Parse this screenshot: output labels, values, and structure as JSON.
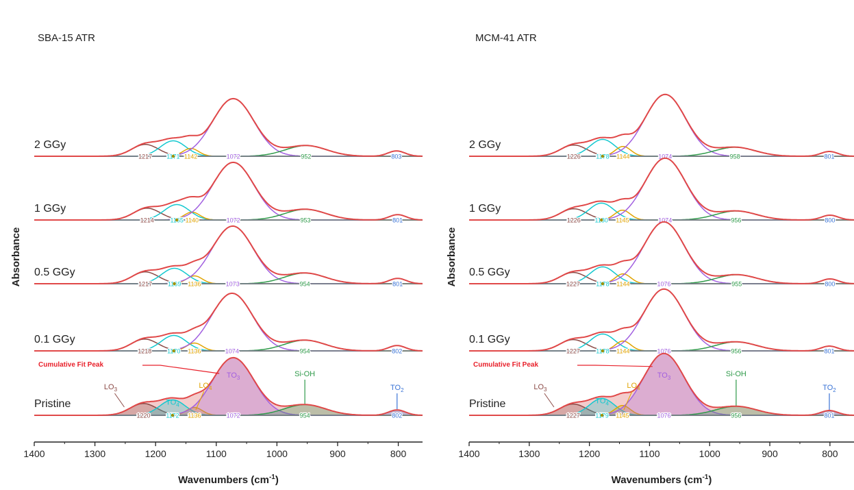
{
  "colors": {
    "envelope": "#e04848",
    "envelope_fill": "#e9a3a3",
    "baseline": "#7f7f7f",
    "LO3": "#8b4a46",
    "TO4": "#12c8cf",
    "LO4": "#e0a300",
    "TO3": "#a15fe0",
    "SiOH": "#2f9a4a",
    "TO2": "#3a73d6",
    "marker": "#a09000"
  },
  "y_axis_label": "Absorbance",
  "band_names": {
    "LO3": "LO",
    "LO3_sub": "3",
    "TO4": "TO",
    "TO4_sub": "4",
    "LO4": "LO",
    "LO4_sub": "4",
    "TO3": "TO",
    "TO3_sub": "3",
    "SiOH": "Si-OH",
    "TO2": "TO",
    "TO2_sub": "2"
  },
  "chart_data": [
    {
      "type": "line",
      "title": "SBA-15 ATR",
      "xlabel_main": "Wavenumbers (cm",
      "xlabel_sup": "-1",
      "xlabel_end": ")",
      "xlim": [
        1400,
        760
      ],
      "xticks": [
        1400,
        1300,
        1200,
        1100,
        1000,
        900,
        800
      ],
      "cumulative_label": "Cumulative Fit Peak",
      "samples": [
        {
          "name": "2 GGy",
          "peaks": {
            "LO3": 1217,
            "TO4": 1171,
            "LO4": 1142,
            "TO3": 1072,
            "SiOH": 952,
            "TO2": 803
          },
          "heights": {
            "LO3": 0.42,
            "TO4": 0.55,
            "LO4": 0.28,
            "TO3": 2.05,
            "SiOH": 0.38,
            "TO2": 0.19
          }
        },
        {
          "name": "1 GGy",
          "peaks": {
            "LO3": 1214,
            "TO4": 1165,
            "LO4": 1140,
            "TO3": 1072,
            "SiOH": 953,
            "TO2": 801
          },
          "heights": {
            "LO3": 0.42,
            "TO4": 0.55,
            "LO4": 0.28,
            "TO3": 2.05,
            "SiOH": 0.38,
            "TO2": 0.19
          }
        },
        {
          "name": "0.5 GGy",
          "peaks": {
            "LO3": 1217,
            "TO4": 1169,
            "LO4": 1136,
            "TO3": 1073,
            "SiOH": 954,
            "TO2": 801
          },
          "heights": {
            "LO3": 0.42,
            "TO4": 0.55,
            "LO4": 0.28,
            "TO3": 2.05,
            "SiOH": 0.38,
            "TO2": 0.19
          }
        },
        {
          "name": "0.1 GGy",
          "peaks": {
            "LO3": 1218,
            "TO4": 1170,
            "LO4": 1136,
            "TO3": 1074,
            "SiOH": 954,
            "TO2": 802
          },
          "heights": {
            "LO3": 0.42,
            "TO4": 0.55,
            "LO4": 0.28,
            "TO3": 2.05,
            "SiOH": 0.38,
            "TO2": 0.19
          }
        },
        {
          "name": "Pristine",
          "peaks": {
            "LO3": 1220,
            "TO4": 1172,
            "LO4": 1136,
            "TO3": 1072,
            "SiOH": 954,
            "TO2": 802
          },
          "heights": {
            "LO3": 0.42,
            "TO4": 0.55,
            "LO4": 0.28,
            "TO3": 2.05,
            "SiOH": 0.38,
            "TO2": 0.19
          }
        }
      ]
    },
    {
      "type": "line",
      "title": "MCM-41 ATR",
      "xlabel_main": "Wavenumbers (cm",
      "xlabel_sup": "-1",
      "xlabel_end": ")",
      "xlim": [
        1400,
        760
      ],
      "xticks": [
        1400,
        1300,
        1200,
        1100,
        1000,
        900,
        800
      ],
      "cumulative_label": "Cumulative Fit Peak",
      "samples": [
        {
          "name": "2 GGy",
          "peaks": {
            "LO3": 1226,
            "TO4": 1178,
            "LO4": 1144,
            "TO3": 1074,
            "SiOH": 958,
            "TO2": 801
          },
          "heights": {
            "LO3": 0.4,
            "TO4": 0.6,
            "LO4": 0.35,
            "TO3": 2.2,
            "SiOH": 0.32,
            "TO2": 0.17
          }
        },
        {
          "name": "1 GGy",
          "peaks": {
            "LO3": 1226,
            "TO4": 1180,
            "LO4": 1145,
            "TO3": 1074,
            "SiOH": 956,
            "TO2": 800
          },
          "heights": {
            "LO3": 0.4,
            "TO4": 0.6,
            "LO4": 0.35,
            "TO3": 2.2,
            "SiOH": 0.32,
            "TO2": 0.17
          }
        },
        {
          "name": "0.5 GGy",
          "peaks": {
            "LO3": 1227,
            "TO4": 1178,
            "LO4": 1144,
            "TO3": 1076,
            "SiOH": 955,
            "TO2": 800
          },
          "heights": {
            "LO3": 0.4,
            "TO4": 0.6,
            "LO4": 0.35,
            "TO3": 2.2,
            "SiOH": 0.32,
            "TO2": 0.17
          }
        },
        {
          "name": "0.1 GGy",
          "peaks": {
            "LO3": 1227,
            "TO4": 1178,
            "LO4": 1144,
            "TO3": 1076,
            "SiOH": 956,
            "TO2": 801
          },
          "heights": {
            "LO3": 0.4,
            "TO4": 0.6,
            "LO4": 0.35,
            "TO3": 2.2,
            "SiOH": 0.32,
            "TO2": 0.17
          }
        },
        {
          "name": "Pristine",
          "peaks": {
            "LO3": 1227,
            "TO4": 1179,
            "LO4": 1145,
            "TO3": 1076,
            "SiOH": 956,
            "TO2": 801
          },
          "heights": {
            "LO3": 0.4,
            "TO4": 0.6,
            "LO4": 0.35,
            "TO3": 2.2,
            "SiOH": 0.32,
            "TO2": 0.17
          }
        }
      ]
    }
  ]
}
